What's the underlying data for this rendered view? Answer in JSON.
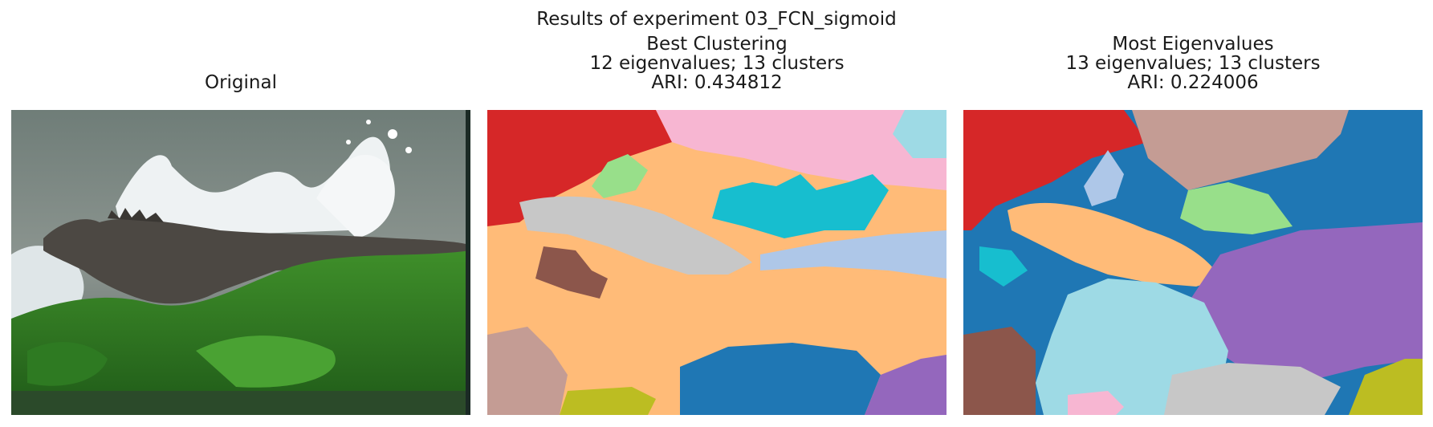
{
  "figure": {
    "title": "Results of experiment 03_FCN_sigmoid",
    "panels": [
      {
        "title_lines": [
          "Original"
        ],
        "kind": "photo"
      },
      {
        "title_lines": [
          "Best Clustering",
          "12 eigenvalues; 13 clusters",
          "ARI: 0.434812"
        ],
        "kind": "cluster-map"
      },
      {
        "title_lines": [
          "Most Eigenvalues",
          "13 eigenvalues; 13 clusters",
          "ARI: 0.224006"
        ],
        "kind": "cluster-map"
      }
    ]
  },
  "palette": {
    "red": "#d62728",
    "pink": "#f7b6d2",
    "cyan": "#17becf",
    "light_cyan": "#9edae5",
    "light_orange": "#ffbb78",
    "gray": "#c7c7c7",
    "light_blue": "#aec7e8",
    "brown": "#8c564b",
    "light_brown": "#c49c94",
    "blue": "#1f77b4",
    "purple": "#9467bd",
    "olive": "#bcbd22",
    "light_green": "#98df8a"
  }
}
